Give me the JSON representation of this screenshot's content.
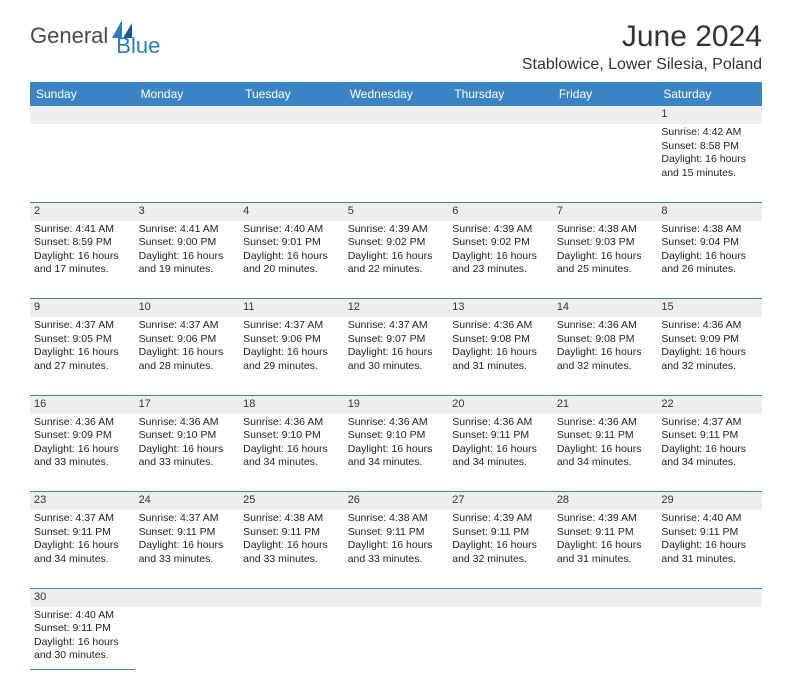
{
  "logo": {
    "part1": "General",
    "part2": "Blue"
  },
  "title": "June 2024",
  "location": "Stablowice, Lower Silesia, Poland",
  "colors": {
    "header_bg": "#3b84c4",
    "header_text": "#ffffff",
    "daynum_bg": "#eeeeee",
    "border": "#3b84c4",
    "logo_gray": "#4a4a4a",
    "logo_blue": "#2d7bb8"
  },
  "daynames": [
    "Sunday",
    "Monday",
    "Tuesday",
    "Wednesday",
    "Thursday",
    "Friday",
    "Saturday"
  ],
  "weeks": [
    {
      "nums": [
        "",
        "",
        "",
        "",
        "",
        "",
        "1"
      ],
      "cells": [
        null,
        null,
        null,
        null,
        null,
        null,
        {
          "sunrise": "Sunrise: 4:42 AM",
          "sunset": "Sunset: 8:58 PM",
          "dl1": "Daylight: 16 hours",
          "dl2": "and 15 minutes."
        }
      ]
    },
    {
      "nums": [
        "2",
        "3",
        "4",
        "5",
        "6",
        "7",
        "8"
      ],
      "cells": [
        {
          "sunrise": "Sunrise: 4:41 AM",
          "sunset": "Sunset: 8:59 PM",
          "dl1": "Daylight: 16 hours",
          "dl2": "and 17 minutes."
        },
        {
          "sunrise": "Sunrise: 4:41 AM",
          "sunset": "Sunset: 9:00 PM",
          "dl1": "Daylight: 16 hours",
          "dl2": "and 19 minutes."
        },
        {
          "sunrise": "Sunrise: 4:40 AM",
          "sunset": "Sunset: 9:01 PM",
          "dl1": "Daylight: 16 hours",
          "dl2": "and 20 minutes."
        },
        {
          "sunrise": "Sunrise: 4:39 AM",
          "sunset": "Sunset: 9:02 PM",
          "dl1": "Daylight: 16 hours",
          "dl2": "and 22 minutes."
        },
        {
          "sunrise": "Sunrise: 4:39 AM",
          "sunset": "Sunset: 9:02 PM",
          "dl1": "Daylight: 16 hours",
          "dl2": "and 23 minutes."
        },
        {
          "sunrise": "Sunrise: 4:38 AM",
          "sunset": "Sunset: 9:03 PM",
          "dl1": "Daylight: 16 hours",
          "dl2": "and 25 minutes."
        },
        {
          "sunrise": "Sunrise: 4:38 AM",
          "sunset": "Sunset: 9:04 PM",
          "dl1": "Daylight: 16 hours",
          "dl2": "and 26 minutes."
        }
      ]
    },
    {
      "nums": [
        "9",
        "10",
        "11",
        "12",
        "13",
        "14",
        "15"
      ],
      "cells": [
        {
          "sunrise": "Sunrise: 4:37 AM",
          "sunset": "Sunset: 9:05 PM",
          "dl1": "Daylight: 16 hours",
          "dl2": "and 27 minutes."
        },
        {
          "sunrise": "Sunrise: 4:37 AM",
          "sunset": "Sunset: 9:06 PM",
          "dl1": "Daylight: 16 hours",
          "dl2": "and 28 minutes."
        },
        {
          "sunrise": "Sunrise: 4:37 AM",
          "sunset": "Sunset: 9:06 PM",
          "dl1": "Daylight: 16 hours",
          "dl2": "and 29 minutes."
        },
        {
          "sunrise": "Sunrise: 4:37 AM",
          "sunset": "Sunset: 9:07 PM",
          "dl1": "Daylight: 16 hours",
          "dl2": "and 30 minutes."
        },
        {
          "sunrise": "Sunrise: 4:36 AM",
          "sunset": "Sunset: 9:08 PM",
          "dl1": "Daylight: 16 hours",
          "dl2": "and 31 minutes."
        },
        {
          "sunrise": "Sunrise: 4:36 AM",
          "sunset": "Sunset: 9:08 PM",
          "dl1": "Daylight: 16 hours",
          "dl2": "and 32 minutes."
        },
        {
          "sunrise": "Sunrise: 4:36 AM",
          "sunset": "Sunset: 9:09 PM",
          "dl1": "Daylight: 16 hours",
          "dl2": "and 32 minutes."
        }
      ]
    },
    {
      "nums": [
        "16",
        "17",
        "18",
        "19",
        "20",
        "21",
        "22"
      ],
      "cells": [
        {
          "sunrise": "Sunrise: 4:36 AM",
          "sunset": "Sunset: 9:09 PM",
          "dl1": "Daylight: 16 hours",
          "dl2": "and 33 minutes."
        },
        {
          "sunrise": "Sunrise: 4:36 AM",
          "sunset": "Sunset: 9:10 PM",
          "dl1": "Daylight: 16 hours",
          "dl2": "and 33 minutes."
        },
        {
          "sunrise": "Sunrise: 4:36 AM",
          "sunset": "Sunset: 9:10 PM",
          "dl1": "Daylight: 16 hours",
          "dl2": "and 34 minutes."
        },
        {
          "sunrise": "Sunrise: 4:36 AM",
          "sunset": "Sunset: 9:10 PM",
          "dl1": "Daylight: 16 hours",
          "dl2": "and 34 minutes."
        },
        {
          "sunrise": "Sunrise: 4:36 AM",
          "sunset": "Sunset: 9:11 PM",
          "dl1": "Daylight: 16 hours",
          "dl2": "and 34 minutes."
        },
        {
          "sunrise": "Sunrise: 4:36 AM",
          "sunset": "Sunset: 9:11 PM",
          "dl1": "Daylight: 16 hours",
          "dl2": "and 34 minutes."
        },
        {
          "sunrise": "Sunrise: 4:37 AM",
          "sunset": "Sunset: 9:11 PM",
          "dl1": "Daylight: 16 hours",
          "dl2": "and 34 minutes."
        }
      ]
    },
    {
      "nums": [
        "23",
        "24",
        "25",
        "26",
        "27",
        "28",
        "29"
      ],
      "cells": [
        {
          "sunrise": "Sunrise: 4:37 AM",
          "sunset": "Sunset: 9:11 PM",
          "dl1": "Daylight: 16 hours",
          "dl2": "and 34 minutes."
        },
        {
          "sunrise": "Sunrise: 4:37 AM",
          "sunset": "Sunset: 9:11 PM",
          "dl1": "Daylight: 16 hours",
          "dl2": "and 33 minutes."
        },
        {
          "sunrise": "Sunrise: 4:38 AM",
          "sunset": "Sunset: 9:11 PM",
          "dl1": "Daylight: 16 hours",
          "dl2": "and 33 minutes."
        },
        {
          "sunrise": "Sunrise: 4:38 AM",
          "sunset": "Sunset: 9:11 PM",
          "dl1": "Daylight: 16 hours",
          "dl2": "and 33 minutes."
        },
        {
          "sunrise": "Sunrise: 4:39 AM",
          "sunset": "Sunset: 9:11 PM",
          "dl1": "Daylight: 16 hours",
          "dl2": "and 32 minutes."
        },
        {
          "sunrise": "Sunrise: 4:39 AM",
          "sunset": "Sunset: 9:11 PM",
          "dl1": "Daylight: 16 hours",
          "dl2": "and 31 minutes."
        },
        {
          "sunrise": "Sunrise: 4:40 AM",
          "sunset": "Sunset: 9:11 PM",
          "dl1": "Daylight: 16 hours",
          "dl2": "and 31 minutes."
        }
      ]
    },
    {
      "nums": [
        "30",
        "",
        "",
        "",
        "",
        "",
        ""
      ],
      "cells": [
        {
          "sunrise": "Sunrise: 4:40 AM",
          "sunset": "Sunset: 9:11 PM",
          "dl1": "Daylight: 16 hours",
          "dl2": "and 30 minutes."
        },
        null,
        null,
        null,
        null,
        null,
        null
      ]
    }
  ]
}
